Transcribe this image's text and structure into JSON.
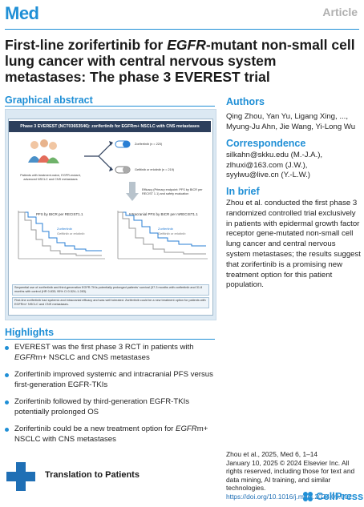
{
  "header": {
    "journal": "Med",
    "article_type": "Article"
  },
  "title": "First-line zorifertinib for EGFR-mutant non-small cell lung cancer with central nervous system metastases: The phase 3 EVEREST trial",
  "title_parts": {
    "before": "First-line zorifertinib for ",
    "italic": "EGFR",
    "after": "-mutant non-small cell lung cancer with central nervous system metastases: The phase 3 EVEREST trial"
  },
  "graphical_abstract": {
    "heading": "Graphical abstract",
    "banner": "Phase 3 EVEREST (NCT03653546): zorifertinib for EGFRm+ NSCLC with CNS metastases",
    "patients_label": "Patients with treatment-naive, EGFR-mutant, advanced NSCLC and CNS metastases",
    "arm1": "Zorifertinib (n = 220)",
    "arm2": "Gefitinib or erlotinib (n = 219)",
    "efficacy": "Efficacy (Primary endpoint: PFS by BICR per RECIST 1.1) and safety evaluation",
    "km1_title": "PFS by BICR per RECIST1.1",
    "km2_title": "Intracranial PFS by BICR per mRECIST1.1",
    "legend_zor": "Zorifertinib",
    "legend_ctrl": "Gefitinib or erlotinib",
    "finding1": "Sequential use of zorifertinib and third-generation EGFR-TKIs potentially prolonged patients' survival (37.3 months with zorifertinib and 31.8 months with control (HR 0.833; 95% CI 0.524–1.283).",
    "finding2": "First-line zorifertinib had systemic and intracranial efficacy and was well tolerated. Zorifertinib could be a new treatment option for patients with EGFRm+ NSCLC and CNS metastases."
  },
  "authors": {
    "heading": "Authors",
    "line1": "Qing Zhou, Yan Yu, Ligang Xing, ...,",
    "line2": "Myung-Ju Ahn, Jie Wang, Yi-Long Wu"
  },
  "correspondence": {
    "heading": "Correspondence",
    "emails": [
      "silkahn@skku.edu (M.-J.A.),",
      "zlhuxi@163.com (J.W.),",
      "syylwu@live.cn (Y.-L.W.)"
    ]
  },
  "in_brief": {
    "heading": "In brief",
    "text": "Zhou et al. conducted the first phase 3 randomized controlled trial exclusively in patients with epidermal growth factor receptor gene-mutated non-small cell lung cancer and central nervous system metastases; the results suggest that zorifertinib is a promising new treatment option for this patient population."
  },
  "highlights": {
    "heading": "Highlights",
    "items": [
      {
        "pre": "EVEREST was the first phase 3 RCT in patients with ",
        "it": "EGFR",
        "post": "m+ NSCLC and CNS metastases"
      },
      {
        "pre": "Zorifertinib improved systemic and intracranial PFS versus first-generation EGFR-TKIs",
        "it": "",
        "post": ""
      },
      {
        "pre": "Zorifertinib followed by third-generation EGFR-TKIs potentially prolonged OS",
        "it": "",
        "post": ""
      },
      {
        "pre": "Zorifertinib could be a new treatment option for ",
        "it": "EGFR",
        "post": "m+ NSCLC with CNS metastases"
      }
    ]
  },
  "citation": {
    "line1": "Zhou et al., 2025, Med 6, 1–14",
    "line2": "January 10, 2025 © 2024 Elsevier Inc. All rights reserved, including those for text and data mining, AI training, and similar technologies.",
    "doi": "https://doi.org/10.1016/j.medj.2024.09.002"
  },
  "footer": {
    "translation": "Translation to Patients",
    "cellpress": "CellPress"
  },
  "colors": {
    "accent": "#1f8fd6",
    "zorifertinib": "#2a7fd4",
    "control": "#9a9a9a",
    "panel_bg": "#dce9f3"
  }
}
